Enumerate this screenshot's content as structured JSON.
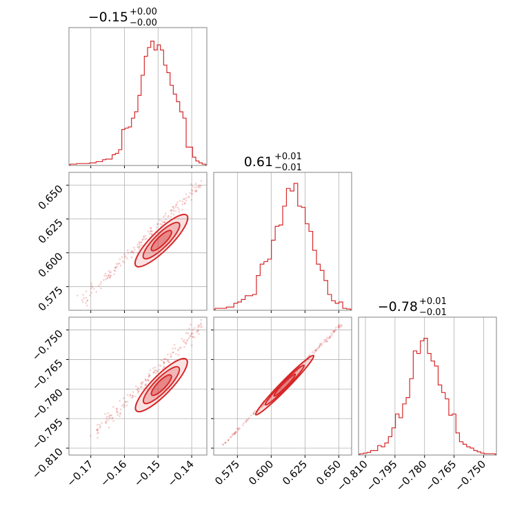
{
  "colors": {
    "line": "#d62728",
    "grid": "#b0b0b0",
    "frame": "#808080"
  },
  "chart_data": {
    "type": "corner",
    "grid": true,
    "parameters": [
      {
        "title": {
          "median": "−0.15",
          "plus": "+0.00",
          "minus": "−0.00"
        },
        "range": [
          -0.1765,
          -0.1355
        ],
        "ticks": [
          -0.17,
          -0.16,
          -0.15,
          -0.14
        ],
        "tick_labels": [
          "−0.17",
          "−0.16",
          "−0.15",
          "−0.14"
        ],
        "hist_values": [
          0.005,
          0.005,
          0.01,
          0.01,
          0.01,
          0.01,
          0.015,
          0.015,
          0.025,
          0.025,
          0.04,
          0.045,
          0.045,
          0.08,
          0.09,
          0.12,
          0.28,
          0.29,
          0.3,
          0.37,
          0.42,
          0.55,
          0.71,
          0.86,
          0.93,
          0.98,
          0.91,
          0.95,
          0.91,
          0.79,
          0.73,
          0.63,
          0.56,
          0.5,
          0.42,
          0.37,
          0.14,
          0.14,
          0.06,
          0.03,
          0.015,
          0.005
        ]
      },
      {
        "title": {
          "median": "0.61",
          "plus": "+0.01",
          "minus": "−0.01"
        },
        "range": [
          0.5575,
          0.6595
        ],
        "ticks": [
          0.575,
          0.6,
          0.625,
          0.65
        ],
        "tick_labels": [
          "0.575",
          "0.600",
          "0.625",
          "0.650"
        ],
        "hist_values": [
          0.01,
          0.01,
          0.01,
          0.02,
          0.02,
          0.05,
          0.06,
          0.08,
          0.11,
          0.11,
          0.12,
          0.27,
          0.36,
          0.38,
          0.4,
          0.55,
          0.66,
          0.67,
          0.82,
          0.96,
          0.94,
          1.0,
          0.82,
          0.81,
          0.68,
          0.62,
          0.47,
          0.36,
          0.31,
          0.23,
          0.12,
          0.07,
          0.05,
          0.06,
          0.01,
          0.005
        ]
      },
      {
        "title": {
          "median": "−0.78",
          "plus": "+0.01",
          "minus": "−0.01"
        },
        "range": [
          -0.8135,
          -0.7435
        ],
        "ticks": [
          -0.81,
          -0.795,
          -0.78,
          -0.765,
          -0.75
        ],
        "tick_labels": [
          "−0.810",
          "−0.795",
          "−0.780",
          "−0.765",
          "−0.750"
        ],
        "hist_values": [
          0.005,
          0.01,
          0.015,
          0.03,
          0.03,
          0.07,
          0.06,
          0.09,
          0.14,
          0.21,
          0.32,
          0.29,
          0.4,
          0.45,
          0.6,
          0.82,
          0.8,
          0.9,
          0.92,
          0.8,
          0.74,
          0.7,
          0.55,
          0.49,
          0.44,
          0.31,
          0.32,
          0.17,
          0.1,
          0.08,
          0.06,
          0.05,
          0.03,
          0.02,
          0.01,
          0.005,
          0.005,
          0.005
        ]
      }
    ],
    "y_tick_labels": {
      "row1": [
        "0.575",
        "0.600",
        "0.625",
        "0.650"
      ],
      "row2": [
        "−0.810",
        "−0.795",
        "−0.780",
        "−0.765",
        "−0.750"
      ]
    },
    "panels": [
      {
        "type": "histogram",
        "row": 0,
        "col": 0,
        "param": 0
      },
      {
        "type": "histogram",
        "row": 1,
        "col": 1,
        "param": 1
      },
      {
        "type": "histogram",
        "row": 2,
        "col": 2,
        "param": 2
      },
      {
        "type": "scatter-contour",
        "row": 1,
        "col": 0,
        "x_param": 0,
        "y_param": 1,
        "trend": [
          [
            -0.173,
            0.563
          ],
          [
            -0.137,
            0.652
          ]
        ],
        "core": [
          -0.149,
          0.609
        ]
      },
      {
        "type": "scatter-contour",
        "row": 2,
        "col": 0,
        "x_param": 0,
        "y_param": 2,
        "trend": [
          [
            -0.169,
            -0.803
          ],
          [
            -0.137,
            -0.747
          ]
        ],
        "core": [
          -0.149,
          -0.778
        ]
      },
      {
        "type": "scatter-contour",
        "row": 2,
        "col": 1,
        "x_param": 1,
        "y_param": 2,
        "trend": [
          [
            0.565,
            -0.808
          ],
          [
            0.652,
            -0.747
          ]
        ],
        "core": [
          0.61,
          -0.778
        ]
      }
    ]
  }
}
